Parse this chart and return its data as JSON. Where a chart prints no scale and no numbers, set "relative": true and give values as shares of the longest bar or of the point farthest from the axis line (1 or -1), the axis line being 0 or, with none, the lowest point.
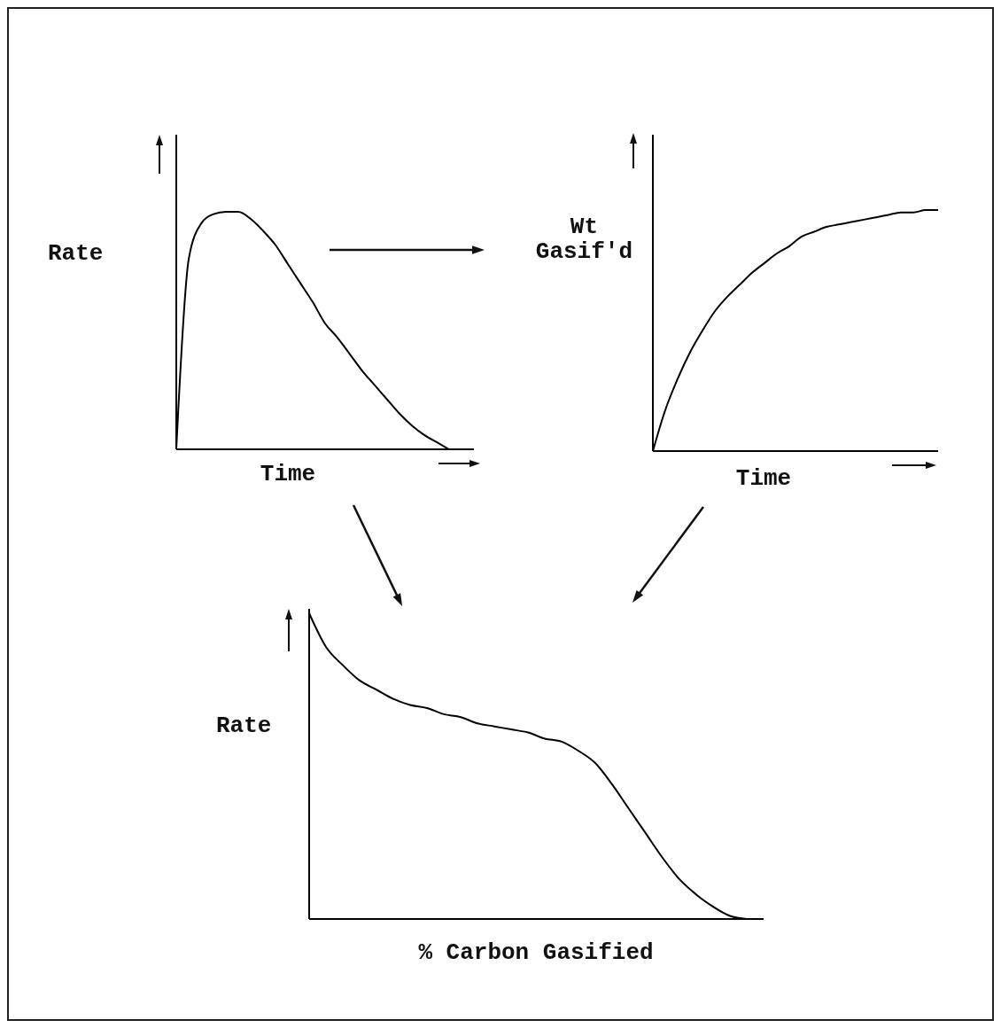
{
  "chart_data": [
    {
      "type": "line",
      "relative": true,
      "ylabel": "Rate",
      "xlabel": "Time",
      "marker": "none",
      "line_style": "solid",
      "categories": [
        null,
        null,
        null,
        null,
        null,
        null,
        null,
        null,
        null,
        null,
        null,
        null,
        null,
        null,
        null,
        null,
        null,
        null,
        null,
        null,
        null,
        null,
        null,
        null,
        null
      ],
      "series": [
        {
          "color": "#000000",
          "values": [
            0,
            0.8,
            0.95,
            0.99,
            1.0,
            1.0,
            0.97,
            0.92,
            0.86,
            0.78,
            0.7,
            0.62,
            0.53,
            0.47,
            0.4,
            0.33,
            0.27,
            0.21,
            0.15,
            0.1,
            0.06,
            0.03,
            0,
            null,
            null
          ]
        }
      ]
    },
    {
      "type": "line",
      "relative": true,
      "ylabel": "Wt Gasif'd",
      "xlabel": "Time",
      "marker": "none",
      "line_style": "solid",
      "categories": [
        null,
        null,
        null,
        null,
        null,
        null,
        null,
        null,
        null,
        null,
        null,
        null,
        null,
        null,
        null,
        null,
        null,
        null,
        null,
        null,
        null,
        null,
        null,
        null
      ],
      "series": [
        {
          "color": "#000000",
          "values": [
            0,
            0.17,
            0.3,
            0.41,
            0.5,
            0.58,
            0.64,
            0.69,
            0.74,
            0.78,
            0.82,
            0.85,
            0.89,
            0.91,
            0.93,
            0.94,
            0.95,
            0.96,
            0.97,
            0.98,
            0.99,
            0.99,
            1.0,
            1.0
          ]
        }
      ]
    },
    {
      "type": "line",
      "relative": true,
      "ylabel": "Rate",
      "xlabel": "% Carbon Gasified",
      "marker": "none",
      "line_style": "solid",
      "categories": [
        null,
        null,
        null,
        null,
        null,
        null,
        null,
        null,
        null,
        null,
        null,
        null,
        null,
        null,
        null,
        null,
        null,
        null,
        null,
        null,
        null,
        null,
        null,
        null,
        null,
        null,
        null,
        null
      ],
      "series": [
        {
          "color": "#000000",
          "values": [
            1.0,
            0.89,
            0.83,
            0.78,
            0.75,
            0.72,
            0.7,
            0.69,
            0.67,
            0.66,
            0.64,
            0.63,
            0.62,
            0.61,
            0.59,
            0.58,
            0.55,
            0.51,
            0.44,
            0.36,
            0.28,
            0.2,
            0.13,
            0.08,
            0.04,
            0.01,
            0,
            null
          ]
        }
      ]
    }
  ]
}
